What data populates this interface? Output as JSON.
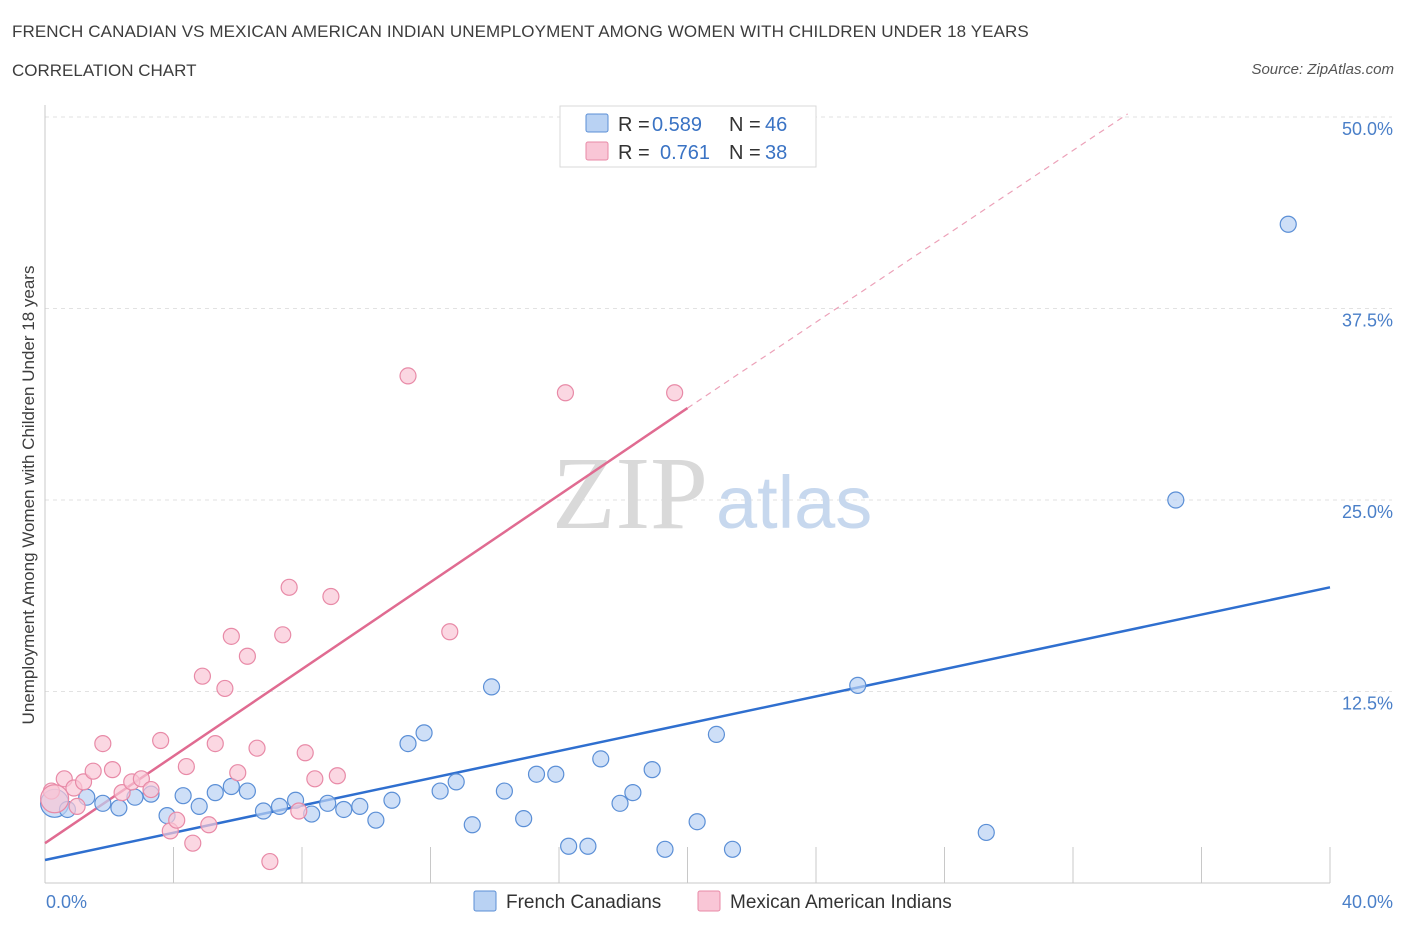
{
  "header": {
    "title": "FRENCH CANADIAN VS MEXICAN AMERICAN INDIAN UNEMPLOYMENT AMONG WOMEN WITH CHILDREN UNDER 18 YEARS",
    "subtitle": "CORRELATION CHART",
    "source": "Source: ZipAtlas.com"
  },
  "watermark": {
    "zip": "ZIP",
    "atlas": "atlas"
  },
  "legend": {
    "r_label": "R =",
    "n_label": "N =",
    "rows": [
      {
        "r": "0.589",
        "n": "46"
      },
      {
        "r": "0.761",
        "n": "38"
      }
    ]
  },
  "chart_data": {
    "type": "scatter",
    "title": "FRENCH CANADIAN VS MEXICAN AMERICAN INDIAN UNEMPLOYMENT AMONG WOMEN WITH CHILDREN UNDER 18 YEARS",
    "ylabel": "Unemployment Among Women with Children Under 18 years",
    "xlabel": "",
    "xlim": [
      0,
      40
    ],
    "ylim": [
      0,
      50
    ],
    "x_tick_labels": [
      "0.0%",
      "40.0%"
    ],
    "y_ticks": [
      12.5,
      25.0,
      37.5,
      50.0
    ],
    "y_tick_labels": [
      "12.5%",
      "25.0%",
      "37.5%",
      "50.0%"
    ],
    "grid": true,
    "legend_position": "top-center",
    "colors": {
      "blue_fill": "#b9d2f3",
      "blue_stroke": "#5b8fd6",
      "blue_line": "#2f6fcf",
      "pink_fill": "#f9c6d6",
      "pink_stroke": "#e88aa7",
      "pink_line": "#e06b91"
    },
    "series": [
      {
        "name": "French Canadians",
        "color": "blue",
        "trend": {
          "x": [
            0,
            40
          ],
          "y": [
            1.5,
            19.3
          ]
        },
        "points": [
          [
            0.3,
            5.2
          ],
          [
            0.7,
            4.8
          ],
          [
            1.3,
            5.6
          ],
          [
            1.8,
            5.2
          ],
          [
            2.3,
            4.9
          ],
          [
            2.8,
            5.6
          ],
          [
            3.3,
            5.8
          ],
          [
            3.8,
            4.4
          ],
          [
            4.3,
            5.7
          ],
          [
            4.8,
            5.0
          ],
          [
            5.3,
            5.9
          ],
          [
            5.8,
            6.3
          ],
          [
            6.3,
            6.0
          ],
          [
            6.8,
            4.7
          ],
          [
            7.3,
            5.0
          ],
          [
            7.8,
            5.4
          ],
          [
            8.3,
            4.5
          ],
          [
            8.8,
            5.2
          ],
          [
            9.3,
            4.8
          ],
          [
            9.8,
            5.0
          ],
          [
            10.3,
            4.1
          ],
          [
            10.8,
            5.4
          ],
          [
            11.3,
            9.1
          ],
          [
            11.8,
            9.8
          ],
          [
            12.3,
            6.0
          ],
          [
            12.8,
            6.6
          ],
          [
            13.3,
            3.8
          ],
          [
            13.9,
            12.8
          ],
          [
            14.3,
            6.0
          ],
          [
            14.9,
            4.2
          ],
          [
            15.3,
            7.1
          ],
          [
            15.9,
            7.1
          ],
          [
            16.3,
            2.4
          ],
          [
            16.9,
            2.4
          ],
          [
            17.3,
            8.1
          ],
          [
            17.9,
            5.2
          ],
          [
            18.3,
            5.9
          ],
          [
            18.9,
            7.4
          ],
          [
            19.3,
            2.2
          ],
          [
            20.3,
            4.0
          ],
          [
            20.9,
            9.7
          ],
          [
            21.4,
            2.2
          ],
          [
            25.3,
            12.9
          ],
          [
            29.3,
            3.3
          ],
          [
            35.2,
            25.0
          ],
          [
            38.7,
            43.0
          ]
        ]
      },
      {
        "name": "Mexican American Indians",
        "color": "pink",
        "trend": {
          "x": [
            0,
            20
          ],
          "y": [
            2.6,
            31.0
          ]
        },
        "trend_extension": {
          "x": [
            20,
            33.7
          ],
          "y": [
            31.0,
            50.2
          ]
        },
        "points": [
          [
            0.2,
            6.0
          ],
          [
            0.6,
            6.8
          ],
          [
            0.9,
            6.2
          ],
          [
            1.2,
            6.6
          ],
          [
            1.5,
            7.3
          ],
          [
            1.8,
            9.1
          ],
          [
            2.1,
            7.4
          ],
          [
            2.4,
            5.9
          ],
          [
            2.7,
            6.6
          ],
          [
            3.0,
            6.8
          ],
          [
            3.3,
            6.1
          ],
          [
            3.6,
            9.3
          ],
          [
            3.9,
            3.4
          ],
          [
            4.1,
            4.1
          ],
          [
            4.4,
            7.6
          ],
          [
            4.6,
            2.6
          ],
          [
            4.9,
            13.5
          ],
          [
            5.1,
            3.8
          ],
          [
            5.3,
            9.1
          ],
          [
            5.6,
            12.7
          ],
          [
            5.8,
            16.1
          ],
          [
            6.0,
            7.2
          ],
          [
            6.3,
            14.8
          ],
          [
            6.6,
            8.8
          ],
          [
            7.0,
            1.4
          ],
          [
            7.4,
            16.2
          ],
          [
            7.6,
            19.3
          ],
          [
            7.9,
            4.7
          ],
          [
            8.1,
            8.5
          ],
          [
            8.4,
            6.8
          ],
          [
            8.9,
            18.7
          ],
          [
            9.1,
            7.0
          ],
          [
            11.3,
            33.1
          ],
          [
            12.6,
            16.4
          ],
          [
            16.2,
            32.0
          ],
          [
            19.6,
            32.0
          ],
          [
            0.3,
            5.5
          ],
          [
            1.0,
            5.0
          ]
        ]
      }
    ]
  }
}
